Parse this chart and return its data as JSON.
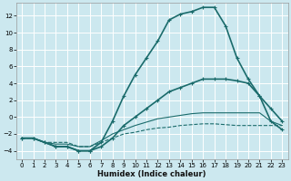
{
  "xlabel": "Humidex (Indice chaleur)",
  "background_color": "#cce8ef",
  "grid_color": "#ffffff",
  "line_color": "#1a6b6b",
  "xlim": [
    -0.5,
    23.5
  ],
  "ylim": [
    -5,
    13.5
  ],
  "yticks": [
    -4,
    -2,
    0,
    2,
    4,
    6,
    8,
    10,
    12
  ],
  "xticks": [
    0,
    1,
    2,
    3,
    4,
    5,
    6,
    7,
    8,
    9,
    10,
    11,
    12,
    13,
    14,
    15,
    16,
    17,
    18,
    19,
    20,
    21,
    22,
    23
  ],
  "lines": [
    {
      "x": [
        0,
        1,
        2,
        3,
        4,
        5,
        6,
        7,
        8,
        9,
        10,
        11,
        12,
        13,
        14,
        15,
        16,
        17,
        18,
        19,
        20,
        21,
        22,
        23
      ],
      "y": [
        -2.5,
        -2.5,
        -3.0,
        -3.0,
        -3.0,
        -3.5,
        -3.5,
        -3.0,
        -2.5,
        -2.0,
        -1.8,
        -1.5,
        -1.3,
        -1.2,
        -1.0,
        -0.9,
        -0.8,
        -0.8,
        -0.9,
        -1.0,
        -1.0,
        -1.0,
        -1.0,
        -1.0
      ],
      "marker": null,
      "lw": 0.8,
      "ls": "--"
    },
    {
      "x": [
        0,
        1,
        2,
        3,
        4,
        5,
        6,
        7,
        8,
        9,
        10,
        11,
        12,
        13,
        14,
        15,
        16,
        17,
        18,
        19,
        20,
        21,
        22,
        23
      ],
      "y": [
        -2.5,
        -2.5,
        -3.0,
        -3.2,
        -3.2,
        -3.5,
        -3.5,
        -2.8,
        -2.0,
        -1.5,
        -1.0,
        -0.6,
        -0.2,
        0.0,
        0.2,
        0.4,
        0.5,
        0.5,
        0.5,
        0.5,
        0.5,
        0.5,
        -0.5,
        -1.0
      ],
      "marker": null,
      "lw": 0.8,
      "ls": "-"
    },
    {
      "x": [
        0,
        1,
        2,
        3,
        4,
        5,
        6,
        7,
        8,
        9,
        10,
        11,
        12,
        13,
        14,
        15,
        16,
        17,
        18,
        19,
        20,
        21,
        22,
        23
      ],
      "y": [
        -2.5,
        -2.5,
        -3.0,
        -3.5,
        -3.5,
        -4.0,
        -4.0,
        -3.5,
        -2.5,
        -1.0,
        0.0,
        1.0,
        2.0,
        3.0,
        3.5,
        4.0,
        4.5,
        4.5,
        4.5,
        4.3,
        4.0,
        2.5,
        1.0,
        -0.5
      ],
      "marker": "+",
      "lw": 1.2,
      "ls": "-"
    },
    {
      "x": [
        0,
        1,
        2,
        3,
        4,
        5,
        6,
        7,
        8,
        9,
        10,
        11,
        12,
        13,
        14,
        15,
        16,
        17,
        18,
        19,
        20,
        21,
        22,
        23
      ],
      "y": [
        -2.5,
        -2.5,
        -3.0,
        -3.5,
        -3.5,
        -4.0,
        -4.0,
        -3.0,
        -0.5,
        2.5,
        5.0,
        7.0,
        9.0,
        11.5,
        12.2,
        12.5,
        13.0,
        13.0,
        10.8,
        7.0,
        4.5,
        2.5,
        -0.5,
        -1.5
      ],
      "marker": "+",
      "lw": 1.2,
      "ls": "-"
    }
  ]
}
